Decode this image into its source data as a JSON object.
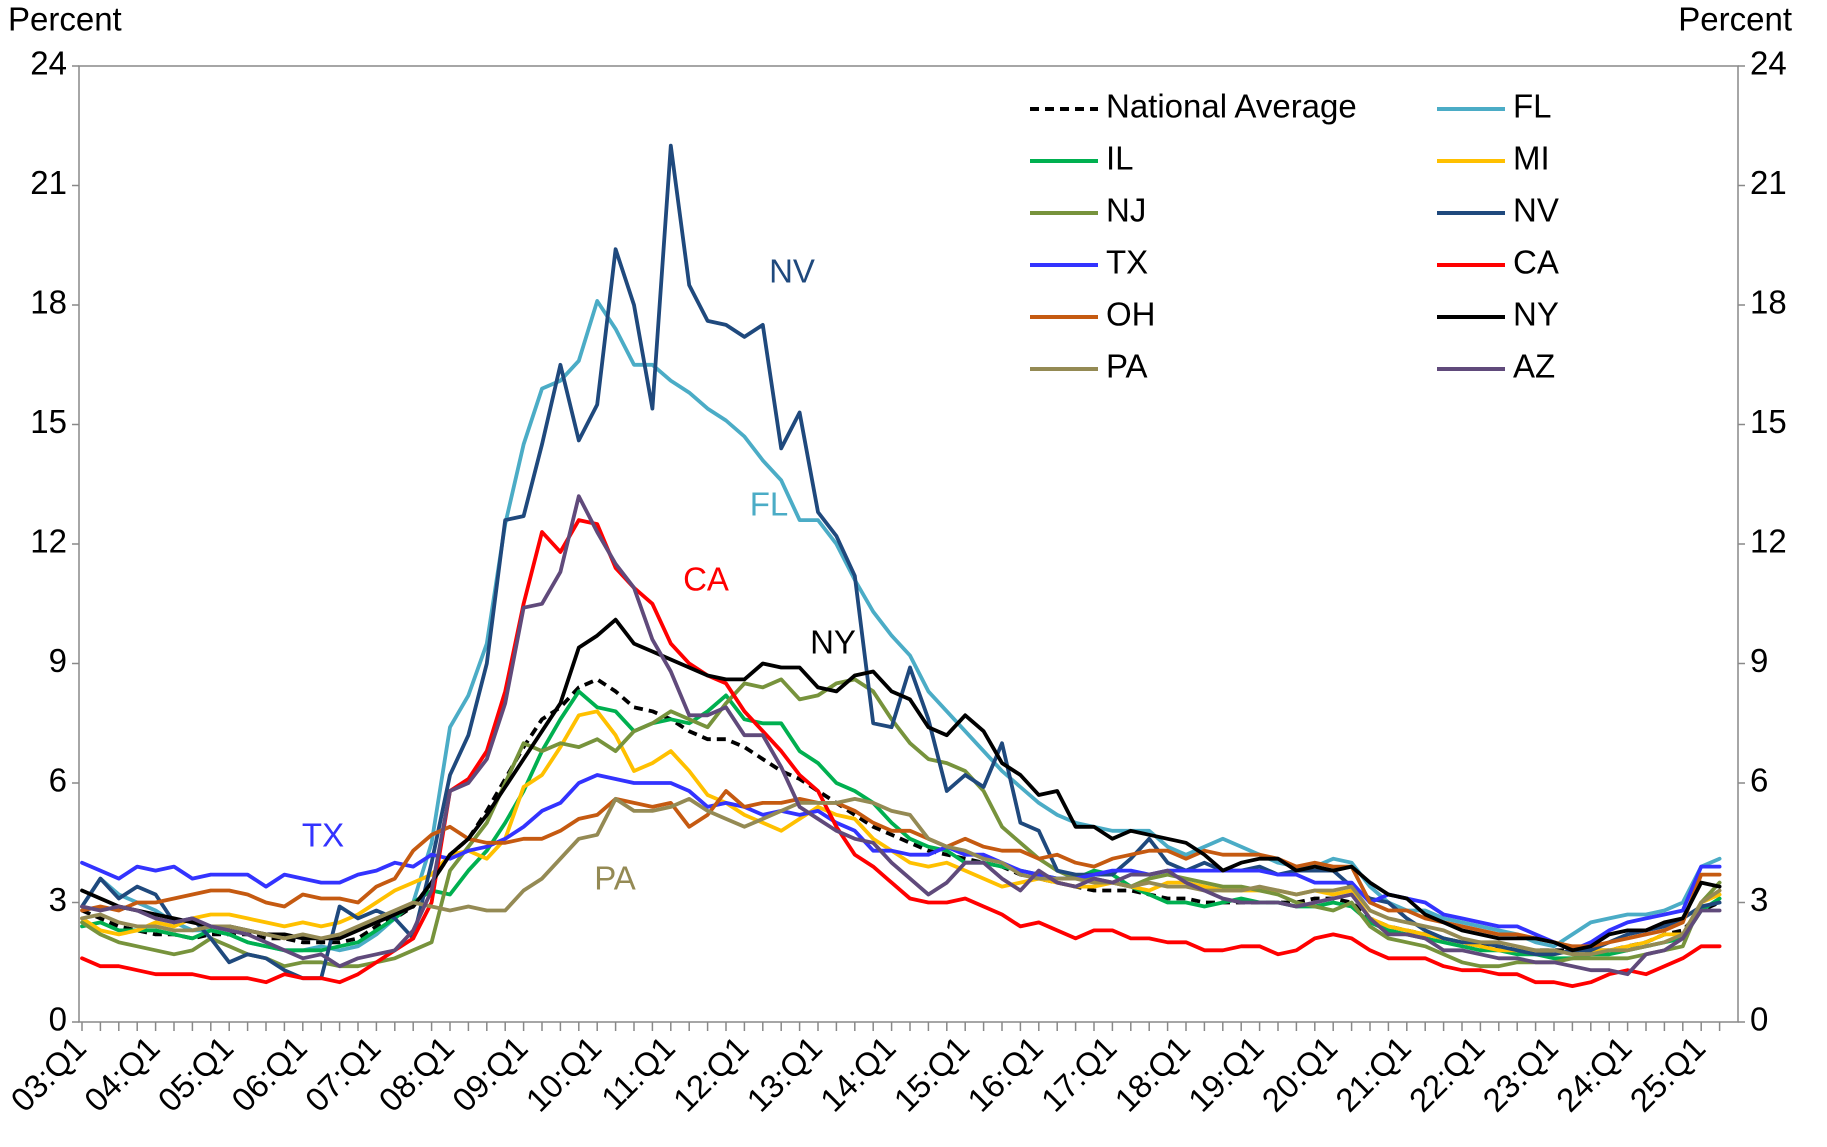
{
  "chart_data": {
    "type": "line",
    "y_label": "Percent",
    "y2_label": "Percent",
    "categories": [
      "03:Q1",
      null,
      null,
      null,
      "04:Q1",
      null,
      null,
      null,
      "05:Q1",
      null,
      null,
      null,
      "06:Q1",
      null,
      null,
      null,
      "07:Q1",
      null,
      null,
      null,
      "08:Q1",
      null,
      null,
      null,
      "09:Q1",
      null,
      null,
      null,
      "10:Q1",
      null,
      null,
      null,
      "11:Q1",
      null,
      null,
      null,
      "12:Q1",
      null,
      null,
      null,
      "13:Q1",
      null,
      null,
      null,
      "14:Q1",
      null,
      null,
      null,
      "15:Q1",
      null,
      null,
      null,
      "16:Q1",
      null,
      null,
      null,
      "17:Q1",
      null,
      null,
      null,
      "18:Q1",
      null,
      null,
      null,
      "19:Q1",
      null,
      null,
      null,
      "20:Q1",
      null,
      null,
      null,
      "21:Q1",
      null,
      null,
      null,
      "22:Q1",
      null,
      null,
      null,
      "23:Q1",
      null,
      null,
      null,
      "24:Q1",
      null,
      null,
      null,
      "25:Q1",
      null
    ],
    "ylim": [
      0,
      24
    ],
    "yticks": [
      0,
      3,
      6,
      9,
      12,
      15,
      18,
      21,
      24
    ],
    "y2lim": [
      0,
      24
    ],
    "y2ticks": [
      0,
      3,
      6,
      9,
      12,
      15,
      18,
      21,
      24
    ],
    "grid": false,
    "legend": "top-right",
    "series": [
      {
        "name": "National Average",
        "color": "#000000",
        "dashed": true,
        "values": [
          2.8,
          2.6,
          2.4,
          2.3,
          2.2,
          2.2,
          2.1,
          2.2,
          2.2,
          2.2,
          2.1,
          2.1,
          2.0,
          2.0,
          2.0,
          2.1,
          2.4,
          2.6,
          2.9,
          3.5,
          4.2,
          4.6,
          5.3,
          6.1,
          6.9,
          7.6,
          7.9,
          8.4,
          8.6,
          8.3,
          7.9,
          7.8,
          7.6,
          7.3,
          7.1,
          7.1,
          6.9,
          6.6,
          6.3,
          6.1,
          5.8,
          5.5,
          5.2,
          4.9,
          4.7,
          4.5,
          4.3,
          4.2,
          4.1,
          4.0,
          3.9,
          3.7,
          3.6,
          3.5,
          3.4,
          3.3,
          3.3,
          3.3,
          3.2,
          3.1,
          3.1,
          3.0,
          3.0,
          3.0,
          3.0,
          3.0,
          3.0,
          3.1,
          3.1,
          3.0,
          2.6,
          2.4,
          2.3,
          2.2,
          2.1,
          2.0,
          1.9,
          1.9,
          1.8,
          1.8,
          1.8,
          1.8,
          1.8,
          1.8,
          1.9,
          2.0,
          2.2,
          2.3,
          2.8,
          3.0
        ]
      },
      {
        "name": "FL",
        "color": "#4bacc6",
        "values": [
          2.9,
          3.6,
          3.2,
          3.0,
          2.8,
          2.5,
          2.3,
          2.3,
          2.2,
          2.0,
          1.9,
          1.8,
          1.8,
          1.9,
          1.8,
          1.9,
          2.2,
          2.6,
          3.0,
          4.5,
          7.4,
          8.2,
          9.5,
          12.5,
          14.5,
          15.9,
          16.1,
          16.6,
          18.1,
          17.4,
          16.5,
          16.5,
          16.1,
          15.8,
          15.4,
          15.1,
          14.7,
          14.1,
          13.6,
          12.6,
          12.6,
          12.0,
          11.1,
          10.3,
          9.7,
          9.2,
          8.3,
          7.8,
          7.3,
          6.8,
          6.3,
          5.9,
          5.5,
          5.2,
          5.0,
          4.9,
          4.8,
          4.8,
          4.8,
          4.4,
          4.2,
          4.4,
          4.6,
          4.4,
          4.2,
          4.0,
          3.9,
          3.9,
          4.1,
          4.0,
          3.4,
          3.0,
          2.8,
          2.8,
          2.6,
          2.5,
          2.4,
          2.3,
          2.2,
          2.0,
          1.9,
          2.2,
          2.5,
          2.6,
          2.7,
          2.7,
          2.8,
          3.0,
          3.9,
          4.1
        ]
      },
      {
        "name": "IL",
        "color": "#00b050",
        "values": [
          2.4,
          2.5,
          2.3,
          2.3,
          2.3,
          2.2,
          2.1,
          2.3,
          2.2,
          2.0,
          1.9,
          1.8,
          1.8,
          1.8,
          1.9,
          2.0,
          2.3,
          2.6,
          3.0,
          3.3,
          3.2,
          3.8,
          4.3,
          5.0,
          5.8,
          6.8,
          7.6,
          8.3,
          7.9,
          7.8,
          7.3,
          7.5,
          7.6,
          7.5,
          7.8,
          8.2,
          7.6,
          7.5,
          7.5,
          6.8,
          6.5,
          6.0,
          5.8,
          5.5,
          5.0,
          4.6,
          4.4,
          4.3,
          4.0,
          4.0,
          3.9,
          3.8,
          3.7,
          3.6,
          3.6,
          3.8,
          3.7,
          3.4,
          3.2,
          3.0,
          3.0,
          2.9,
          3.0,
          3.1,
          3.0,
          3.0,
          2.9,
          2.9,
          3.0,
          2.9,
          2.5,
          2.3,
          2.2,
          2.1,
          2.0,
          1.9,
          1.8,
          1.8,
          1.7,
          1.7,
          1.6,
          1.6,
          1.7,
          1.7,
          1.8,
          1.9,
          2.0,
          2.1,
          2.8,
          3.1
        ]
      },
      {
        "name": "MI",
        "color": "#ffc000",
        "values": [
          2.6,
          2.3,
          2.2,
          2.3,
          2.5,
          2.4,
          2.6,
          2.7,
          2.7,
          2.6,
          2.5,
          2.4,
          2.5,
          2.4,
          2.5,
          2.7,
          3.0,
          3.3,
          3.5,
          3.7,
          4.2,
          4.3,
          4.1,
          4.6,
          5.9,
          6.2,
          6.9,
          7.7,
          7.8,
          7.2,
          6.3,
          6.5,
          6.8,
          6.3,
          5.7,
          5.5,
          5.2,
          5.0,
          4.8,
          5.1,
          5.4,
          5.2,
          5.1,
          4.6,
          4.3,
          4.0,
          3.9,
          4.0,
          3.8,
          3.6,
          3.4,
          3.5,
          3.6,
          3.5,
          3.4,
          3.4,
          3.5,
          3.4,
          3.3,
          3.5,
          3.5,
          3.4,
          3.3,
          3.3,
          3.3,
          3.3,
          3.2,
          3.3,
          3.2,
          3.3,
          2.6,
          2.4,
          2.3,
          2.2,
          2.1,
          2.0,
          1.9,
          1.8,
          1.8,
          1.8,
          1.7,
          1.8,
          1.8,
          1.8,
          1.9,
          2.0,
          2.2,
          2.2,
          3.0,
          3.2
        ]
      },
      {
        "name": "NJ",
        "color": "#77933c",
        "values": [
          2.5,
          2.2,
          2.0,
          1.9,
          1.8,
          1.7,
          1.8,
          2.1,
          1.9,
          1.7,
          1.6,
          1.4,
          1.5,
          1.5,
          1.4,
          1.4,
          1.5,
          1.6,
          1.8,
          2.0,
          3.8,
          4.4,
          5.0,
          6.0,
          7.0,
          6.8,
          7.0,
          6.9,
          7.1,
          6.8,
          7.3,
          7.5,
          7.8,
          7.6,
          7.4,
          8.0,
          8.5,
          8.4,
          8.6,
          8.1,
          8.2,
          8.5,
          8.6,
          8.3,
          7.6,
          7.0,
          6.6,
          6.5,
          6.3,
          5.8,
          4.9,
          4.5,
          4.1,
          3.8,
          3.6,
          3.6,
          3.5,
          3.4,
          3.6,
          3.7,
          3.6,
          3.5,
          3.4,
          3.4,
          3.3,
          3.2,
          3.0,
          2.9,
          2.8,
          3.0,
          2.4,
          2.1,
          2.0,
          1.9,
          1.7,
          1.5,
          1.4,
          1.4,
          1.5,
          1.5,
          1.5,
          1.6,
          1.6,
          1.6,
          1.6,
          1.7,
          1.8,
          1.9,
          3.0,
          3.5
        ]
      },
      {
        "name": "NV",
        "color": "#1f497d",
        "values": [
          2.9,
          3.6,
          3.1,
          3.4,
          3.2,
          2.5,
          2.6,
          2.1,
          1.5,
          1.7,
          1.6,
          1.3,
          1.1,
          1.1,
          2.9,
          2.6,
          2.8,
          2.6,
          2.1,
          4.0,
          6.2,
          7.2,
          9.0,
          12.6,
          12.7,
          14.5,
          16.5,
          14.6,
          15.5,
          19.4,
          18.0,
          15.4,
          22.0,
          18.5,
          17.6,
          17.5,
          17.2,
          17.5,
          14.4,
          15.3,
          12.8,
          12.2,
          11.2,
          7.5,
          7.4,
          8.9,
          7.6,
          5.8,
          6.2,
          5.9,
          7.0,
          5.0,
          4.8,
          3.8,
          3.7,
          3.7,
          3.7,
          4.1,
          4.6,
          4.0,
          3.8,
          4.0,
          3.8,
          3.8,
          3.9,
          3.7,
          3.8,
          3.8,
          3.8,
          3.4,
          3.1,
          3.0,
          2.6,
          2.3,
          2.1,
          2.0,
          2.0,
          1.9,
          1.8,
          1.7,
          1.7,
          1.8,
          1.8,
          2.0,
          2.2,
          2.3,
          2.4,
          2.6,
          2.9,
          3.0
        ]
      },
      {
        "name": "TX",
        "color": "#3333ff",
        "values": [
          4.0,
          3.8,
          3.6,
          3.9,
          3.8,
          3.9,
          3.6,
          3.7,
          3.7,
          3.7,
          3.4,
          3.7,
          3.6,
          3.5,
          3.5,
          3.7,
          3.8,
          4.0,
          3.9,
          4.2,
          4.1,
          4.3,
          4.4,
          4.6,
          4.9,
          5.3,
          5.5,
          6.0,
          6.2,
          6.1,
          6.0,
          6.0,
          6.0,
          5.8,
          5.4,
          5.5,
          5.4,
          5.2,
          5.3,
          5.2,
          5.3,
          5.0,
          4.8,
          4.3,
          4.3,
          4.2,
          4.2,
          4.4,
          4.2,
          4.2,
          4.0,
          3.8,
          3.7,
          3.6,
          3.6,
          3.7,
          3.8,
          3.8,
          3.7,
          3.8,
          3.8,
          3.8,
          3.8,
          3.8,
          3.8,
          3.7,
          3.7,
          3.5,
          3.5,
          3.5,
          3.0,
          3.2,
          3.1,
          3.0,
          2.7,
          2.6,
          2.5,
          2.4,
          2.4,
          2.2,
          2.0,
          1.8,
          2.0,
          2.3,
          2.5,
          2.6,
          2.7,
          2.8,
          3.9,
          3.9
        ]
      },
      {
        "name": "CA",
        "color": "#ff0000",
        "values": [
          1.6,
          1.4,
          1.4,
          1.3,
          1.2,
          1.2,
          1.2,
          1.1,
          1.1,
          1.1,
          1.0,
          1.2,
          1.1,
          1.1,
          1.0,
          1.2,
          1.5,
          1.8,
          2.1,
          3.0,
          5.8,
          6.1,
          6.8,
          8.3,
          10.5,
          12.3,
          11.8,
          12.6,
          12.5,
          11.4,
          10.9,
          10.5,
          9.5,
          9.0,
          8.7,
          8.5,
          7.8,
          7.3,
          6.8,
          6.2,
          5.8,
          4.9,
          4.2,
          3.9,
          3.5,
          3.1,
          3.0,
          3.0,
          3.1,
          2.9,
          2.7,
          2.4,
          2.5,
          2.3,
          2.1,
          2.3,
          2.3,
          2.1,
          2.1,
          2.0,
          2.0,
          1.8,
          1.8,
          1.9,
          1.9,
          1.7,
          1.8,
          2.1,
          2.2,
          2.1,
          1.8,
          1.6,
          1.6,
          1.6,
          1.4,
          1.3,
          1.3,
          1.2,
          1.2,
          1.0,
          1.0,
          0.9,
          1.0,
          1.2,
          1.3,
          1.2,
          1.4,
          1.6,
          1.9,
          1.9
        ]
      },
      {
        "name": "OH",
        "color": "#c55a11",
        "values": [
          2.8,
          2.9,
          2.8,
          3.0,
          3.0,
          3.1,
          3.2,
          3.3,
          3.3,
          3.2,
          3.0,
          2.9,
          3.2,
          3.1,
          3.1,
          3.0,
          3.4,
          3.6,
          4.3,
          4.7,
          4.9,
          4.6,
          4.5,
          4.5,
          4.6,
          4.6,
          4.8,
          5.1,
          5.2,
          5.6,
          5.5,
          5.4,
          5.5,
          4.9,
          5.2,
          5.8,
          5.4,
          5.5,
          5.5,
          5.6,
          5.5,
          5.5,
          5.3,
          5.0,
          4.8,
          4.8,
          4.6,
          4.4,
          4.6,
          4.4,
          4.3,
          4.3,
          4.1,
          4.2,
          4.0,
          3.9,
          4.1,
          4.2,
          4.3,
          4.3,
          4.1,
          4.3,
          4.2,
          4.2,
          4.2,
          4.1,
          3.9,
          4.0,
          3.9,
          3.9,
          3.0,
          2.8,
          2.8,
          2.6,
          2.5,
          2.4,
          2.3,
          2.2,
          2.2,
          2.1,
          2.0,
          1.9,
          1.9,
          2.0,
          2.1,
          2.2,
          2.3,
          2.5,
          3.7,
          3.7
        ]
      },
      {
        "name": "NY",
        "color": "#000000",
        "values": [
          3.3,
          3.1,
          2.9,
          2.8,
          2.7,
          2.6,
          2.5,
          2.4,
          2.4,
          2.3,
          2.2,
          2.2,
          2.1,
          2.1,
          2.1,
          2.3,
          2.5,
          2.7,
          2.9,
          3.5,
          4.2,
          4.6,
          5.2,
          5.9,
          6.6,
          7.3,
          8.0,
          9.4,
          9.7,
          10.1,
          9.5,
          9.3,
          9.1,
          8.9,
          8.7,
          8.6,
          8.6,
          9.0,
          8.9,
          8.9,
          8.4,
          8.3,
          8.7,
          8.8,
          8.3,
          8.1,
          7.4,
          7.2,
          7.7,
          7.3,
          6.5,
          6.2,
          5.7,
          5.8,
          4.9,
          4.9,
          4.6,
          4.8,
          4.7,
          4.6,
          4.5,
          4.2,
          3.8,
          4.0,
          4.1,
          4.1,
          3.8,
          3.9,
          3.8,
          3.9,
          3.5,
          3.2,
          3.1,
          2.7,
          2.5,
          2.3,
          2.2,
          2.1,
          2.1,
          2.1,
          2.0,
          1.8,
          1.9,
          2.2,
          2.3,
          2.3,
          2.5,
          2.6,
          3.5,
          3.4
        ]
      },
      {
        "name": "PA",
        "color": "#948a54",
        "values": [
          2.6,
          2.7,
          2.5,
          2.4,
          2.4,
          2.3,
          2.3,
          2.4,
          2.4,
          2.3,
          2.2,
          2.1,
          2.2,
          2.1,
          2.2,
          2.4,
          2.6,
          2.8,
          3.0,
          2.9,
          2.8,
          2.9,
          2.8,
          2.8,
          3.3,
          3.6,
          4.1,
          4.6,
          4.7,
          5.6,
          5.3,
          5.3,
          5.4,
          5.6,
          5.3,
          5.1,
          4.9,
          5.1,
          5.3,
          5.5,
          5.5,
          5.5,
          5.6,
          5.5,
          5.3,
          5.2,
          4.6,
          4.4,
          4.3,
          4.1,
          4.0,
          3.7,
          3.6,
          3.6,
          3.6,
          3.5,
          3.5,
          3.4,
          3.5,
          3.4,
          3.4,
          3.3,
          3.3,
          3.3,
          3.4,
          3.3,
          3.2,
          3.3,
          3.3,
          3.4,
          2.8,
          2.6,
          2.5,
          2.4,
          2.3,
          2.1,
          2.0,
          2.0,
          1.9,
          1.8,
          1.8,
          1.7,
          1.7,
          1.8,
          1.8,
          1.9,
          2.0,
          2.2,
          3.0,
          3.3
        ]
      },
      {
        "name": "AZ",
        "color": "#604a7b",
        "values": [
          2.9,
          2.8,
          2.9,
          2.8,
          2.6,
          2.5,
          2.6,
          2.4,
          2.3,
          2.2,
          2.0,
          1.8,
          1.6,
          1.7,
          1.4,
          1.6,
          1.7,
          1.8,
          2.3,
          3.3,
          5.8,
          6.0,
          6.6,
          8.0,
          10.4,
          10.5,
          11.3,
          13.2,
          12.3,
          11.5,
          10.9,
          9.6,
          8.8,
          7.7,
          7.7,
          7.9,
          7.2,
          7.2,
          6.4,
          5.4,
          5.1,
          4.8,
          4.6,
          4.5,
          4.0,
          3.6,
          3.2,
          3.5,
          4.0,
          4.0,
          3.6,
          3.3,
          3.8,
          3.5,
          3.4,
          3.6,
          3.5,
          3.7,
          3.7,
          3.8,
          3.5,
          3.3,
          3.1,
          3.0,
          3.0,
          3.0,
          2.9,
          3.0,
          3.1,
          3.2,
          2.6,
          2.2,
          2.2,
          2.1,
          1.8,
          1.8,
          1.7,
          1.6,
          1.6,
          1.5,
          1.5,
          1.4,
          1.3,
          1.3,
          1.2,
          1.7,
          1.8,
          2.1,
          2.8,
          2.8
        ]
      }
    ],
    "annotations": [
      {
        "text": "NV",
        "color": "#1f497d"
      },
      {
        "text": "FL",
        "color": "#4bacc6"
      },
      {
        "text": "CA",
        "color": "#ff0000"
      },
      {
        "text": "NY",
        "color": "#000000"
      },
      {
        "text": "TX",
        "color": "#3333ff"
      },
      {
        "text": "PA",
        "color": "#948a54"
      }
    ]
  }
}
